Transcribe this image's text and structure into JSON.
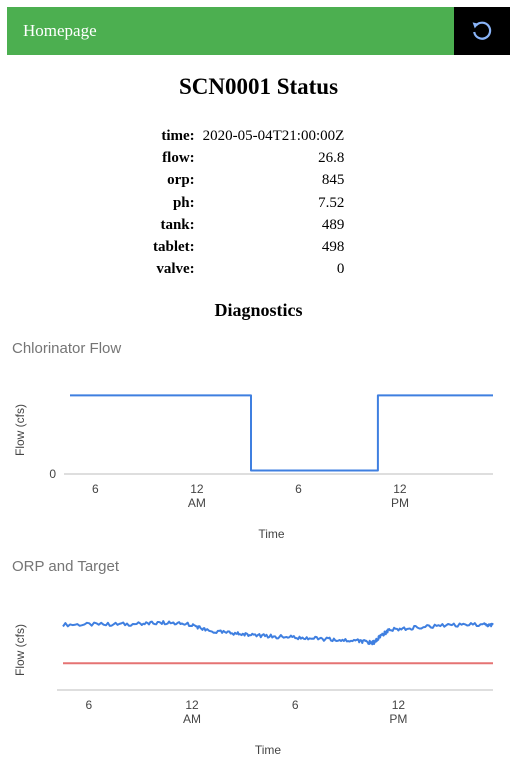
{
  "header": {
    "home_label": "Homepage",
    "accent_color": "#4caf50",
    "refresh_icon": "refresh-icon"
  },
  "page": {
    "title": "SCN0001 Status"
  },
  "status": [
    {
      "key": "time:",
      "value": "2020-05-04T21:00:00Z"
    },
    {
      "key": "flow:",
      "value": "26.8"
    },
    {
      "key": "orp:",
      "value": "845"
    },
    {
      "key": "ph:",
      "value": "7.52"
    },
    {
      "key": "tank:",
      "value": "489"
    },
    {
      "key": "tablet:",
      "value": "498"
    },
    {
      "key": "valve:",
      "value": "0"
    }
  ],
  "diagnostics": {
    "title": "Diagnostics"
  },
  "chart_data": [
    {
      "type": "line",
      "title": "Chlorinator Flow",
      "xlabel": "Time",
      "ylabel": "Flow (cfs)",
      "x_ticks": [
        {
          "hour": -6,
          "label": "6",
          "sub": ""
        },
        {
          "hour": 0,
          "label": "12",
          "sub": "AM"
        },
        {
          "hour": 6,
          "label": "6",
          "sub": ""
        },
        {
          "hour": 12,
          "label": "12",
          "sub": "PM"
        }
      ],
      "y_ticks": [
        0
      ],
      "xlim": [
        -7.5,
        17.5
      ],
      "ylim": [
        0,
        30
      ],
      "series": [
        {
          "color": "#3f7fe0",
          "x": [
            -7.5,
            3.2,
            3.2,
            10.7,
            10.7,
            17.5
          ],
          "y": [
            26.8,
            26.8,
            1.2,
            1.2,
            26.8,
            26.8
          ]
        }
      ]
    },
    {
      "type": "line",
      "title": "ORP and Target",
      "xlabel": "Time",
      "ylabel": "Flow (cfs)",
      "x_ticks": [
        {
          "hour": -6,
          "label": "6",
          "sub": ""
        },
        {
          "hour": 0,
          "label": "12",
          "sub": "AM"
        },
        {
          "hour": 6,
          "label": "6",
          "sub": ""
        },
        {
          "hour": 12,
          "label": "12",
          "sub": "PM"
        }
      ],
      "xlim": [
        -7.5,
        17.5
      ],
      "ylim": [
        600,
        900
      ],
      "series": [
        {
          "color": "#3f7fe0",
          "x": [
            -7.5,
            -5,
            -3,
            -1.5,
            0,
            1,
            2.5,
            3.5,
            5,
            6.5,
            8,
            9.5,
            10.3,
            10.6,
            10.9,
            11.5,
            13,
            15,
            17,
            17.5
          ],
          "y": [
            845,
            846,
            848,
            852,
            845,
            820,
            812,
            805,
            800,
            795,
            790,
            785,
            778,
            778,
            800,
            825,
            835,
            842,
            845,
            845
          ]
        },
        {
          "color": "#e57373",
          "x": [
            -7.5,
            17.5
          ],
          "y": [
            700,
            700
          ]
        }
      ]
    }
  ]
}
